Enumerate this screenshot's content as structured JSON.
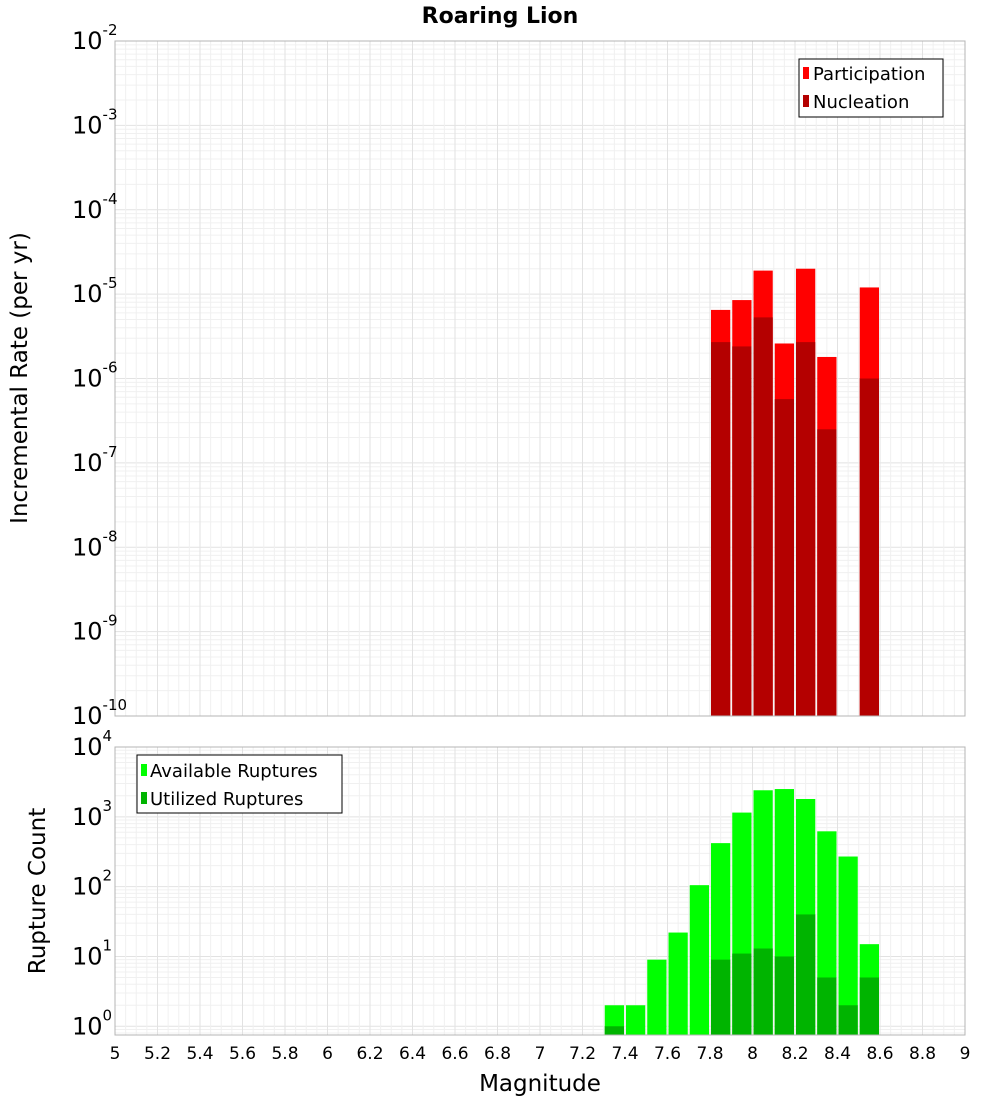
{
  "title": "Roaring Lion",
  "colors": {
    "participation": "#ff0000",
    "nucleation": "#b40000",
    "available": "#00ff00",
    "utilized": "#00b400"
  },
  "chart_data": [
    {
      "type": "bar",
      "scale": "log",
      "ylabel": "Incremental Rate (per yr)",
      "ylim": [
        1e-10,
        0.01
      ],
      "y_ticks": [
        {
          "base": "10",
          "exp": "-2"
        },
        {
          "base": "10",
          "exp": "-3"
        },
        {
          "base": "10",
          "exp": "-4"
        },
        {
          "base": "10",
          "exp": "-5"
        },
        {
          "base": "10",
          "exp": "-6"
        },
        {
          "base": "10",
          "exp": "-7"
        },
        {
          "base": "10",
          "exp": "-8"
        },
        {
          "base": "10",
          "exp": "-9"
        },
        {
          "base": "10",
          "exp": "-10"
        }
      ],
      "legend": {
        "placement": "top-right",
        "entries": [
          "Participation",
          "Nucleation"
        ]
      },
      "x": [
        7.85,
        7.95,
        8.05,
        8.15,
        8.25,
        8.35,
        8.55
      ],
      "series": [
        {
          "name": "Participation",
          "values": [
            6.5e-06,
            8.5e-06,
            1.9e-05,
            2.6e-06,
            2e-05,
            1.8e-06,
            1.2e-05
          ]
        },
        {
          "name": "Nucleation",
          "values": [
            2.7e-06,
            2.4e-06,
            5.3e-06,
            5.7e-07,
            2.7e-06,
            2.5e-07,
            1e-06
          ]
        }
      ]
    },
    {
      "type": "bar",
      "scale": "log",
      "ylabel": "Rupture Count",
      "ylim": [
        0.75,
        10000
      ],
      "y_ticks": [
        {
          "base": "10",
          "exp": "4"
        },
        {
          "base": "10",
          "exp": "3"
        },
        {
          "base": "10",
          "exp": "2"
        },
        {
          "base": "10",
          "exp": "1"
        },
        {
          "base": "10",
          "exp": "0"
        }
      ],
      "legend": {
        "placement": "top-left",
        "entries": [
          "Available Ruptures",
          "Utilized Ruptures"
        ]
      },
      "x": [
        7.35,
        7.45,
        7.55,
        7.65,
        7.75,
        7.85,
        7.95,
        8.05,
        8.15,
        8.25,
        8.35,
        8.45,
        8.55
      ],
      "series": [
        {
          "name": "Available Ruptures",
          "values": [
            2,
            2,
            9,
            22,
            105,
            420,
            1150,
            2400,
            2500,
            1800,
            620,
            270,
            15
          ]
        },
        {
          "name": "Utilized Ruptures",
          "values": [
            1,
            0,
            0,
            0,
            0,
            9,
            11,
            13,
            10,
            40,
            5,
            2,
            5
          ]
        }
      ]
    }
  ],
  "xaxis": {
    "label": "Magnitude",
    "xlim": [
      5,
      9
    ],
    "ticks": [
      "5",
      "5.2",
      "5.4",
      "5.6",
      "5.8",
      "6",
      "6.2",
      "6.4",
      "6.6",
      "6.8",
      "7",
      "7.2",
      "7.4",
      "7.6",
      "7.8",
      "8",
      "8.2",
      "8.4",
      "8.6",
      "8.8",
      "9"
    ]
  }
}
